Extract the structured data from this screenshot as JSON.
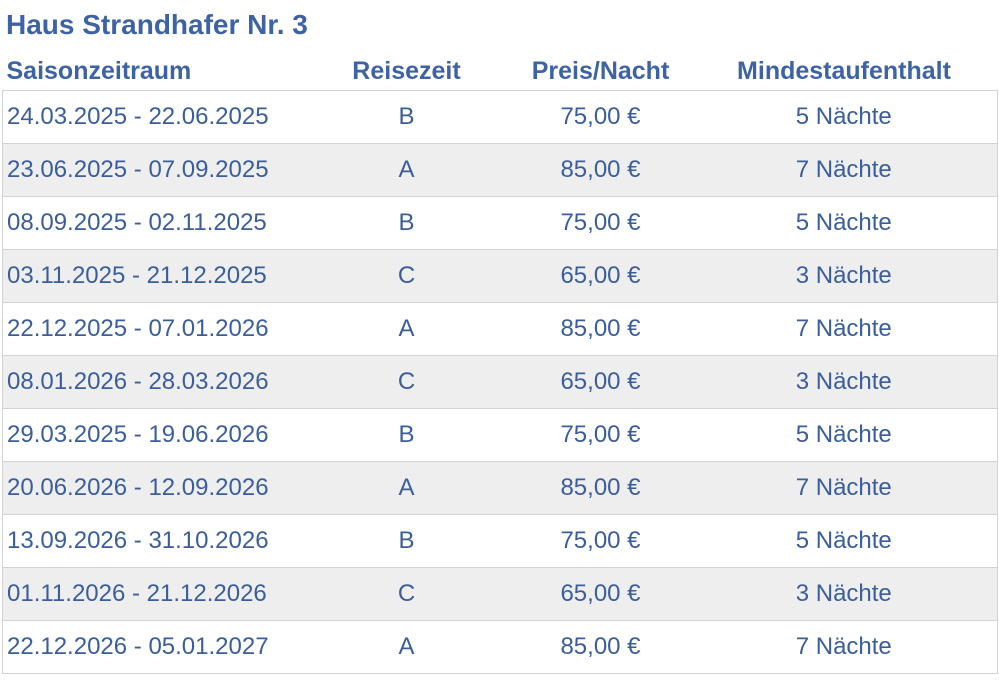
{
  "title": "Haus Strandhafer Nr. 3",
  "headers": [
    "Saisonzeitraum",
    "Reisezeit",
    "Preis/Nacht",
    "Mindestaufenthalt"
  ],
  "rows": [
    [
      "24.03.2025 - 22.06.2025",
      "B",
      "75,00 €",
      "5 Nächte"
    ],
    [
      "23.06.2025 - 07.09.2025",
      "A",
      "85,00 €",
      "7 Nächte"
    ],
    [
      "08.09.2025 - 02.11.2025",
      "B",
      "75,00 €",
      "5 Nächte"
    ],
    [
      "03.11.2025 - 21.12.2025",
      "C",
      "65,00 €",
      "3 Nächte"
    ],
    [
      "22.12.2025 - 07.01.2026",
      "A",
      "85,00 €",
      "7 Nächte"
    ],
    [
      "08.01.2026 - 28.03.2026",
      "C",
      "65,00 €",
      "3 Nächte"
    ],
    [
      "29.03.2025 - 19.06.2026",
      "B",
      "75,00 €",
      "5 Nächte"
    ],
    [
      "20.06.2026 - 12.09.2026",
      "A",
      "85,00 €",
      "7 Nächte"
    ],
    [
      "13.09.2026 - 31.10.2026",
      "B",
      "75,00 €",
      "5 Nächte"
    ],
    [
      "01.11.2026 - 21.12.2026",
      "C",
      "65,00 €",
      "3 Nächte"
    ],
    [
      "22.12.2026 - 05.01.2027",
      "A",
      "85,00 €",
      "7 Nächte"
    ]
  ],
  "colors": {
    "heading": "#3e63a5",
    "text": "#3a5e9c",
    "stripe": "#eeeeee",
    "border": "#d2d2d2"
  }
}
